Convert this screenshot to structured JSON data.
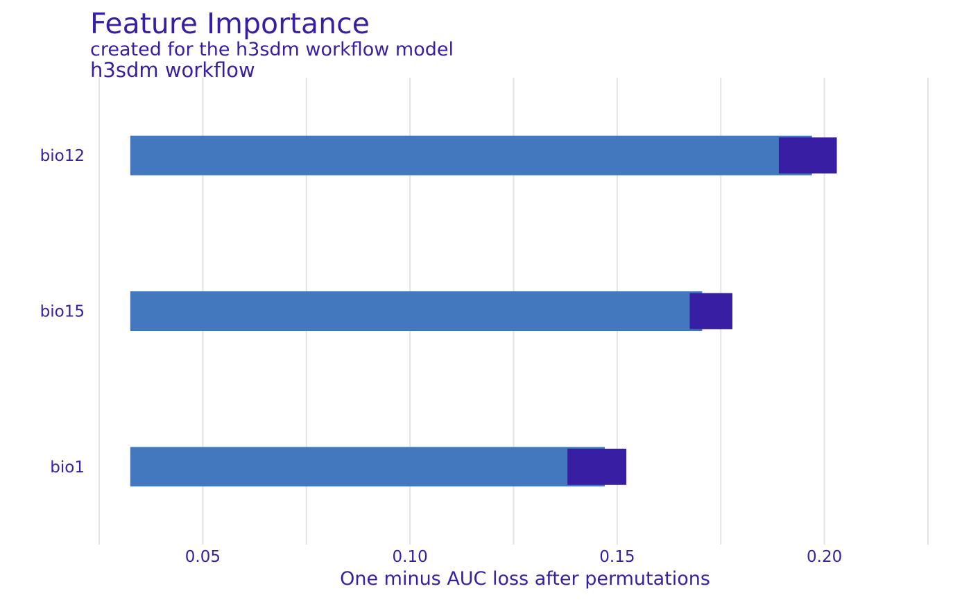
{
  "chart_data": {
    "type": "bar",
    "orientation": "horizontal",
    "title": "Feature Importance",
    "subtitle": "created for the h3sdm workflow model",
    "model_label": "h3sdm workflow",
    "xlabel": "One minus AUC loss after permutations",
    "ylabel": "",
    "xlim": [
      0.025,
      0.2255
    ],
    "xticks": [
      0.05,
      0.1,
      0.15,
      0.2
    ],
    "xtick_labels": [
      "0.05",
      "0.10",
      "0.15",
      "0.20"
    ],
    "grid": "vertical",
    "categories": [
      "bio12",
      "bio15",
      "bio1"
    ],
    "baseline": 0.0325,
    "values": [
      0.197,
      0.1705,
      0.147
    ],
    "boxes": [
      {
        "feature": "bio12",
        "low": 0.189,
        "high": 0.203
      },
      {
        "feature": "bio15",
        "low": 0.1675,
        "high": 0.1778
      },
      {
        "feature": "bio1",
        "low": 0.138,
        "high": 0.1522
      }
    ],
    "colors": {
      "bar": "#4378bf",
      "box": "#371ea3",
      "text": "#371ea3",
      "grid": "#e3e3e3"
    }
  }
}
